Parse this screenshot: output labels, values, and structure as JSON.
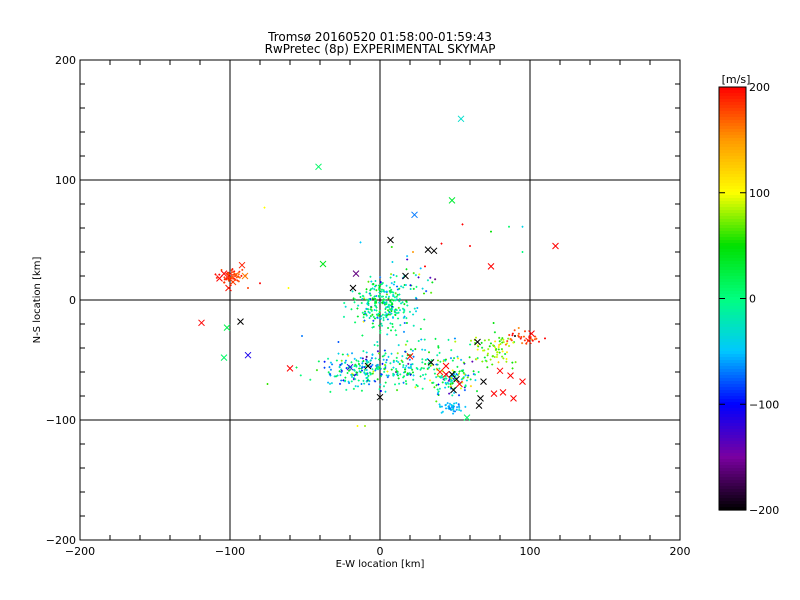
{
  "chart_data": {
    "type": "scatter",
    "title": "Tromsø 20160520 01:58:00-01:59:43",
    "subtitle": "RwPretec (8p) EXPERIMENTAL SKYMAP",
    "xlabel": "E-W location [km]",
    "ylabel": "N-S location [km]",
    "xlim": [
      -200,
      200
    ],
    "ylim": [
      -200,
      200
    ],
    "xticks": [
      -200,
      -100,
      0,
      100,
      200
    ],
    "yticks": [
      -200,
      -100,
      0,
      100,
      200
    ],
    "grid": true,
    "colorbar": {
      "label": "[m/s]",
      "range": [
        -200,
        200
      ],
      "ticks": [
        200,
        100,
        0,
        -100,
        -200
      ],
      "colormap": [
        "#000000",
        "#7a00a0",
        "#0000ff",
        "#00c8ff",
        "#00ff7f",
        "#00e000",
        "#ffff00",
        "#ff9900",
        "#ff0000"
      ]
    },
    "clusters": [
      {
        "x": 2,
        "y": -5,
        "spread_x": 9,
        "spread_y": 11,
        "count": 260,
        "vmean": -5,
        "vspread": 35
      },
      {
        "x": -10,
        "y": -58,
        "spread_x": 14,
        "spread_y": 8,
        "count": 220,
        "vmean": -30,
        "vspread": 45
      },
      {
        "x": 25,
        "y": -55,
        "spread_x": 14,
        "spread_y": 12,
        "count": 140,
        "vmean": 5,
        "vspread": 40
      },
      {
        "x": 50,
        "y": -65,
        "spread_x": 8,
        "spread_y": 8,
        "count": 100,
        "vmean": -10,
        "vspread": 60
      },
      {
        "x": 48,
        "y": -90,
        "spread_x": 4,
        "spread_y": 3,
        "count": 40,
        "vmean": -55,
        "vspread": 10
      },
      {
        "x": 75,
        "y": -40,
        "spread_x": 8,
        "spread_y": 7,
        "count": 70,
        "vmean": 75,
        "vspread": 25
      },
      {
        "x": 95,
        "y": -32,
        "spread_x": 6,
        "spread_y": 3,
        "count": 30,
        "vmean": 185,
        "vspread": 15
      },
      {
        "x": -100,
        "y": 20,
        "spread_x": 4,
        "spread_y": 3,
        "count": 50,
        "vmean": 185,
        "vspread": 15
      },
      {
        "x": 15,
        "y": 15,
        "spread_x": 14,
        "spread_y": 10,
        "count": 40,
        "vmean": -40,
        "vspread": 60
      }
    ],
    "x_markers": [
      {
        "x": 54,
        "y": 151,
        "v": -30
      },
      {
        "x": -41,
        "y": 111,
        "v": 10
      },
      {
        "x": 48,
        "y": 83,
        "v": 30
      },
      {
        "x": 23,
        "y": 71,
        "v": -70
      },
      {
        "x": 117,
        "y": 45,
        "v": 200
      },
      {
        "x": 7,
        "y": 50,
        "v": -200
      },
      {
        "x": 32,
        "y": 42,
        "v": -200
      },
      {
        "x": 36,
        "y": 41,
        "v": -200
      },
      {
        "x": -38,
        "y": 30,
        "v": 40
      },
      {
        "x": 74,
        "y": 28,
        "v": 200
      },
      {
        "x": -16,
        "y": 22,
        "v": -160
      },
      {
        "x": 17,
        "y": 20,
        "v": -200
      },
      {
        "x": -18,
        "y": 10,
        "v": -200
      },
      {
        "x": -92,
        "y": 29,
        "v": 190
      },
      {
        "x": -104,
        "y": 22,
        "v": 200
      },
      {
        "x": -101,
        "y": 20,
        "v": 190
      },
      {
        "x": -96,
        "y": 21,
        "v": 170
      },
      {
        "x": -107,
        "y": 18,
        "v": 200
      },
      {
        "x": -98,
        "y": 15,
        "v": 180
      },
      {
        "x": -101,
        "y": 10,
        "v": 195
      },
      {
        "x": -90,
        "y": 20,
        "v": 160
      },
      {
        "x": -119,
        "y": -19,
        "v": 200
      },
      {
        "x": -93,
        "y": -18,
        "v": -200
      },
      {
        "x": -102,
        "y": -23,
        "v": 20
      },
      {
        "x": -104,
        "y": -48,
        "v": 10
      },
      {
        "x": -88,
        "y": -46,
        "v": -110
      },
      {
        "x": -60,
        "y": -57,
        "v": 200
      },
      {
        "x": -20,
        "y": -56,
        "v": -120
      },
      {
        "x": -8,
        "y": -55,
        "v": -200
      },
      {
        "x": 0,
        "y": -81,
        "v": -200
      },
      {
        "x": 40,
        "y": -60,
        "v": 190
      },
      {
        "x": 44,
        "y": -55,
        "v": 200
      },
      {
        "x": 48,
        "y": -62,
        "v": -200
      },
      {
        "x": 51,
        "y": -66,
        "v": -200
      },
      {
        "x": 49,
        "y": -75,
        "v": -200
      },
      {
        "x": 53,
        "y": -70,
        "v": 200
      },
      {
        "x": 34,
        "y": -52,
        "v": -200
      },
      {
        "x": 67,
        "y": -82,
        "v": -200
      },
      {
        "x": 69,
        "y": -68,
        "v": -200
      },
      {
        "x": 76,
        "y": -78,
        "v": 200
      },
      {
        "x": 82,
        "y": -77,
        "v": 200
      },
      {
        "x": 80,
        "y": -59,
        "v": 200
      },
      {
        "x": 87,
        "y": -63,
        "v": 200
      },
      {
        "x": 95,
        "y": -68,
        "v": 200
      },
      {
        "x": 89,
        "y": -82,
        "v": 200
      },
      {
        "x": 58,
        "y": -98,
        "v": 10
      },
      {
        "x": 101,
        "y": -28,
        "v": 200
      },
      {
        "x": 99,
        "y": -34,
        "v": 190
      },
      {
        "x": 65,
        "y": -35,
        "v": -200
      },
      {
        "x": 20,
        "y": -47,
        "v": 200
      },
      {
        "x": 66,
        "y": -88,
        "v": -200
      },
      {
        "x": 44,
        "y": -62,
        "v": 200
      }
    ],
    "scattered_dots": [
      {
        "x": -77,
        "y": 77,
        "v": 100
      },
      {
        "x": 86,
        "y": 61,
        "v": 10
      },
      {
        "x": 95,
        "y": 61,
        "v": -40
      },
      {
        "x": 55,
        "y": 63,
        "v": 200
      },
      {
        "x": 74,
        "y": 57,
        "v": 50
      },
      {
        "x": -13,
        "y": 48,
        "v": -50
      },
      {
        "x": 60,
        "y": 45,
        "v": 200
      },
      {
        "x": 41,
        "y": 47,
        "v": 200
      },
      {
        "x": 95,
        "y": 40,
        "v": 0
      },
      {
        "x": 22,
        "y": 40,
        "v": 150
      },
      {
        "x": -80,
        "y": 14,
        "v": 200
      },
      {
        "x": -61,
        "y": 10,
        "v": 100
      },
      {
        "x": -88,
        "y": 10,
        "v": 180
      },
      {
        "x": -52,
        "y": -30,
        "v": -70
      },
      {
        "x": -75,
        "y": -70,
        "v": 60
      },
      {
        "x": 110,
        "y": -32,
        "v": 200
      },
      {
        "x": -15,
        "y": -105,
        "v": 100
      },
      {
        "x": -10,
        "y": -105,
        "v": 80
      },
      {
        "x": 90,
        "y": -30,
        "v": -200
      },
      {
        "x": 30,
        "y": 28,
        "v": 200
      }
    ]
  }
}
